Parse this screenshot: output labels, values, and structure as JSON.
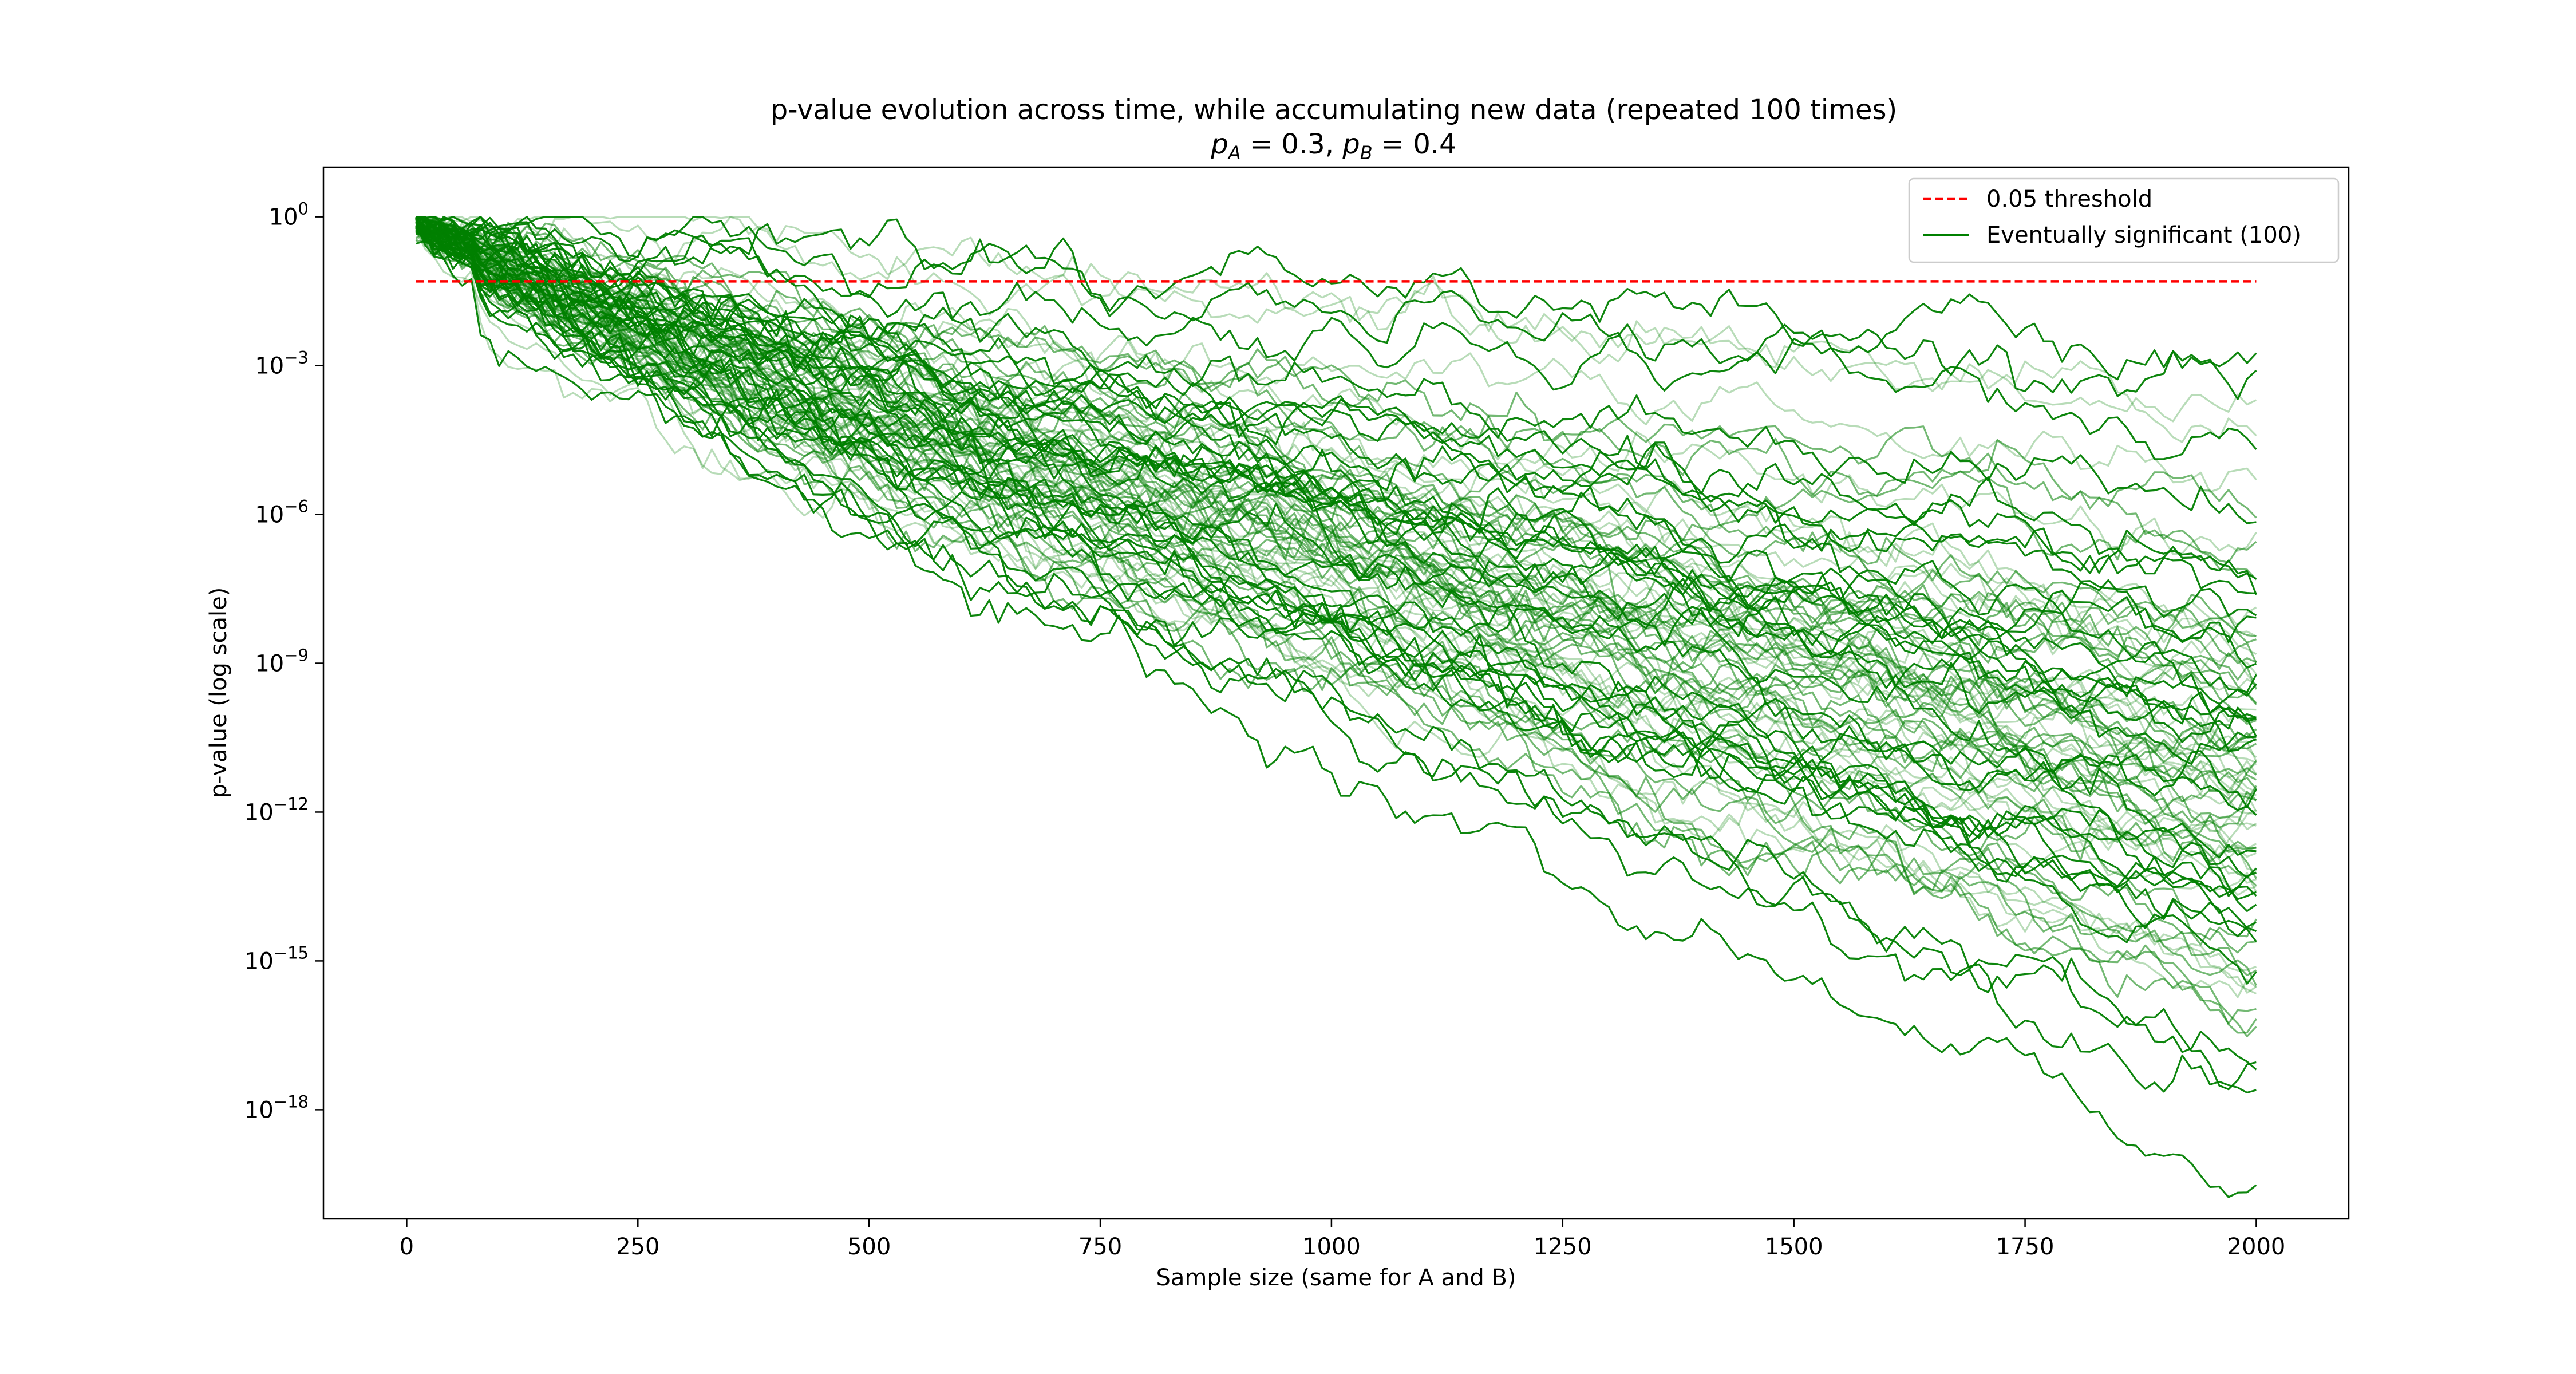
{
  "chart_data": {
    "type": "line",
    "title": "p-value evolution across time, while accumulating new data (repeated 100 times)",
    "subtitle": {
      "a_sym": "p",
      "a_sub": "A",
      "a_val": " = 0.3, ",
      "b_sym": "p",
      "b_sub": "B",
      "b_val": " = 0.4"
    },
    "xlabel": "Sample size (same for A and B)",
    "ylabel": "p-value (log scale)",
    "xlim": [
      -90,
      2100
    ],
    "x_ticks": [
      0,
      250,
      500,
      750,
      1000,
      1250,
      1500,
      1750,
      2000
    ],
    "x_tick_labels": [
      "0",
      "250",
      "500",
      "750",
      "1000",
      "1250",
      "1500",
      "1750",
      "2000"
    ],
    "y_scale": "log",
    "ylim_exp": [
      -20.2,
      1.0
    ],
    "y_ticks_exp": [
      0,
      -3,
      -6,
      -9,
      -12,
      -15,
      -18
    ],
    "y_tick_labels": [
      {
        "base": "10",
        "exp": "0"
      },
      {
        "base": "10",
        "exp": "−3"
      },
      {
        "base": "10",
        "exp": "−6"
      },
      {
        "base": "10",
        "exp": "−9"
      },
      {
        "base": "10",
        "exp": "−12"
      },
      {
        "base": "10",
        "exp": "−15"
      },
      {
        "base": "10",
        "exp": "−18"
      }
    ],
    "threshold": {
      "value": 0.05,
      "x_range": [
        10,
        2000
      ],
      "color": "#ff0000",
      "label": "0.05 threshold"
    },
    "series_color": "#008000",
    "series_count": 100,
    "series_x_start": 10,
    "series_x_end": 2000,
    "series_x_step": 10,
    "legend": {
      "placement": "top-right",
      "entries": [
        "0.05 threshold",
        "Eventually significant (100)"
      ]
    },
    "series_final_log10_p": [
      -3.0,
      -3.6,
      -4.1,
      -4.6,
      -4.9,
      -5.2,
      -5.6,
      -5.9,
      -6.3,
      -6.6,
      -6.9,
      -7.1,
      -7.3,
      -7.5,
      -7.7,
      -7.9,
      -8.1,
      -8.2,
      -8.4,
      -8.5,
      -8.7,
      -8.8,
      -8.9,
      -9.0,
      -9.1,
      -9.2,
      -9.3,
      -9.4,
      -9.5,
      -9.6,
      -9.7,
      -9.8,
      -9.9,
      -10.0,
      -10.0,
      -10.1,
      -10.2,
      -10.3,
      -10.3,
      -10.4,
      -10.5,
      -10.6,
      -10.6,
      -10.7,
      -10.8,
      -10.9,
      -10.9,
      -11.0,
      -11.1,
      -11.2,
      -11.2,
      -11.3,
      -11.4,
      -11.5,
      -11.5,
      -11.6,
      -11.7,
      -11.8,
      -11.9,
      -12.0,
      -12.0,
      -12.1,
      -12.2,
      -12.3,
      -12.4,
      -12.5,
      -12.6,
      -12.7,
      -12.8,
      -12.9,
      -13.0,
      -13.1,
      -13.2,
      -13.3,
      -13.4,
      -13.5,
      -13.6,
      -13.7,
      -13.8,
      -13.9,
      -14.0,
      -14.1,
      -14.2,
      -14.4,
      -14.5,
      -14.6,
      -14.8,
      -14.9,
      -15.0,
      -15.2,
      -15.4,
      -15.6,
      -15.8,
      -16.0,
      -16.2,
      -16.5,
      -16.8,
      -17.0,
      -17.4,
      -19.2
    ],
    "series_dip_log10_p": [
      -5.5,
      -6.5,
      -9.2,
      -11.8,
      -12.5,
      -13.2
    ]
  }
}
